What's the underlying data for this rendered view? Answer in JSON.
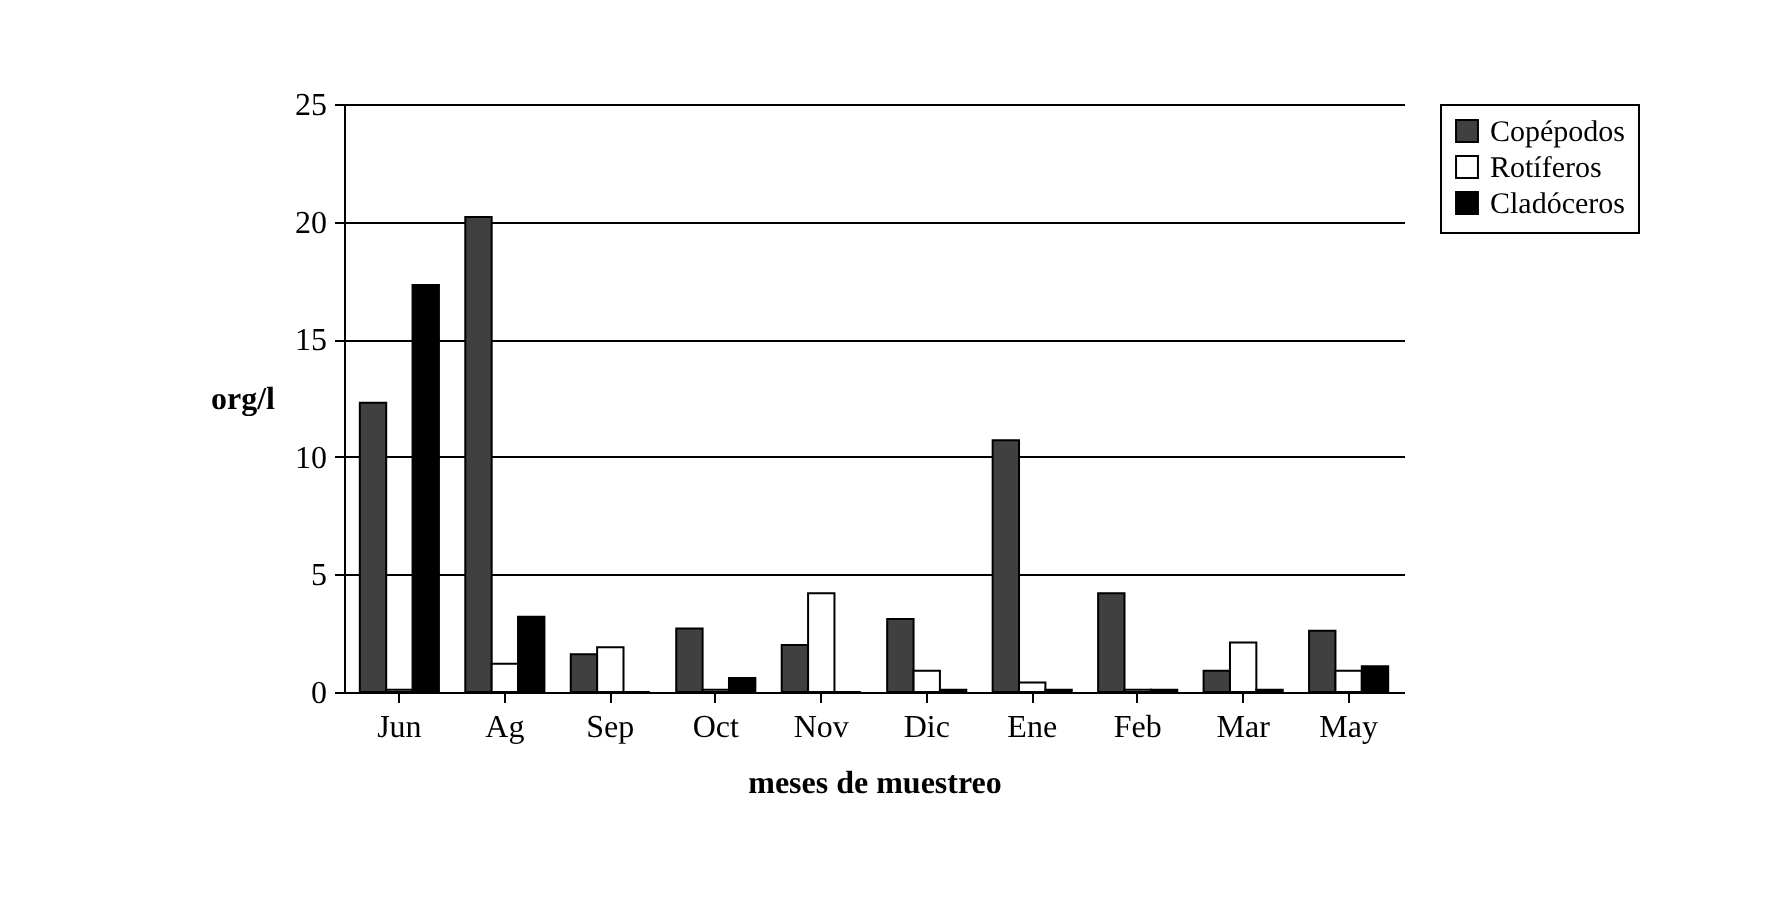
{
  "chart_data": {
    "type": "bar",
    "xlabel": "meses de muestreo",
    "ylabel": "org/l",
    "categories": [
      "Jun",
      "Ag",
      "Sep",
      "Oct",
      "Nov",
      "Dic",
      "Ene",
      "Feb",
      "Mar",
      "May"
    ],
    "series": [
      {
        "name": "Copépodos",
        "color": "#404040",
        "values": [
          12.3,
          20.2,
          1.6,
          2.7,
          2.0,
          3.1,
          10.7,
          4.2,
          0.9,
          2.6
        ]
      },
      {
        "name": "Rotíferos",
        "color": "#ffffff",
        "values": [
          0.1,
          1.2,
          1.9,
          0.1,
          4.2,
          0.9,
          0.4,
          0.1,
          2.1,
          0.9
        ]
      },
      {
        "name": "Cladóceros",
        "color": "#000000",
        "values": [
          17.3,
          3.2,
          0,
          0.6,
          0,
          0.1,
          0.1,
          0.1,
          0.1,
          1.1
        ]
      }
    ],
    "ylim": [
      0,
      25
    ],
    "yticks": [
      0,
      5,
      10,
      15,
      20,
      25
    ],
    "grid": "y",
    "legend": "right"
  }
}
